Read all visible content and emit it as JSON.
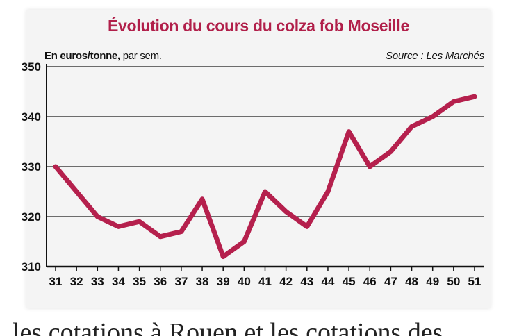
{
  "chart_data": {
    "type": "line",
    "title": "Évolution du cours du colza fob Moseille",
    "unit_bold": "En euros/tonne,",
    "unit_rest": " par sem.",
    "source": "Source : Les Marchés",
    "x": [
      31,
      32,
      33,
      34,
      35,
      36,
      37,
      38,
      39,
      40,
      41,
      42,
      43,
      44,
      45,
      46,
      47,
      48,
      49,
      50,
      51
    ],
    "series": [
      {
        "values": [
          330,
          325,
          320,
          318,
          319,
          316,
          317,
          323.5,
          312,
          315,
          325,
          321,
          318,
          325,
          337,
          330,
          333,
          338,
          340,
          343,
          344
        ]
      }
    ],
    "ylim": [
      310,
      350
    ],
    "yticks": [
      310,
      320,
      330,
      340,
      350
    ],
    "grid": true,
    "line_color": "#b5204d"
  },
  "caption": "les cotations à Rouen et les cotations des"
}
